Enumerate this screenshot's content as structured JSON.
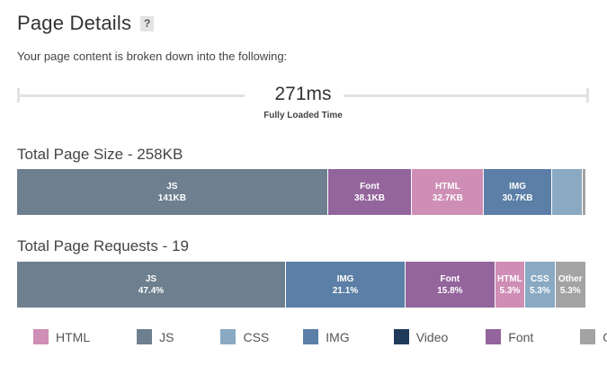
{
  "header": {
    "title": "Page Details",
    "help": "?",
    "description": "Your page content is broken down into the following:"
  },
  "timeline": {
    "value": "271ms",
    "label": "Fully Loaded Time"
  },
  "page_size": {
    "title": "Total Page Size - 258KB",
    "segments": [
      {
        "type": "JS",
        "label": "JS",
        "value": "141KB",
        "fraction": 0.547,
        "color": "#6e7f8f"
      },
      {
        "type": "Font",
        "label": "Font",
        "value": "38.1KB",
        "fraction": 0.148,
        "color": "#93659c"
      },
      {
        "type": "HTML",
        "label": "HTML",
        "value": "32.7KB",
        "fraction": 0.127,
        "color": "#cf8eb5"
      },
      {
        "type": "IMG",
        "label": "IMG",
        "value": "30.7KB",
        "fraction": 0.119,
        "color": "#5b7fa6"
      },
      {
        "type": "CSS",
        "label": "",
        "value": "",
        "fraction": 0.054,
        "color": "#8aa9c2"
      },
      {
        "type": "Other",
        "label": "",
        "value": "",
        "fraction": 0.005,
        "color": "#a3a3a3"
      }
    ]
  },
  "page_requests": {
    "title": "Total Page Requests - 19",
    "segments": [
      {
        "type": "JS",
        "label": "JS",
        "value": "47.4%",
        "fraction": 0.474,
        "color": "#6e7f8f"
      },
      {
        "type": "IMG",
        "label": "IMG",
        "value": "21.1%",
        "fraction": 0.211,
        "color": "#5b7fa6"
      },
      {
        "type": "Font",
        "label": "Font",
        "value": "15.8%",
        "fraction": 0.158,
        "color": "#93659c"
      },
      {
        "type": "HTML",
        "label": "HTML",
        "value": "5.3%",
        "fraction": 0.053,
        "color": "#cf8eb5"
      },
      {
        "type": "CSS",
        "label": "CSS",
        "value": "5.3%",
        "fraction": 0.053,
        "color": "#8aa9c2"
      },
      {
        "type": "Other",
        "label": "Other",
        "value": "5.3%",
        "fraction": 0.053,
        "color": "#a3a3a3"
      }
    ]
  },
  "legend": [
    {
      "label": "HTML",
      "color": "#cf8eb5"
    },
    {
      "label": "JS",
      "color": "#6e7f8f"
    },
    {
      "label": "CSS",
      "color": "#8aa9c2"
    },
    {
      "label": "IMG",
      "color": "#5b7fa6"
    },
    {
      "label": "Video",
      "color": "#1f3b5b"
    },
    {
      "label": "Font",
      "color": "#93659c"
    },
    {
      "label": "Other",
      "color": "#a3a3a3"
    }
  ]
}
